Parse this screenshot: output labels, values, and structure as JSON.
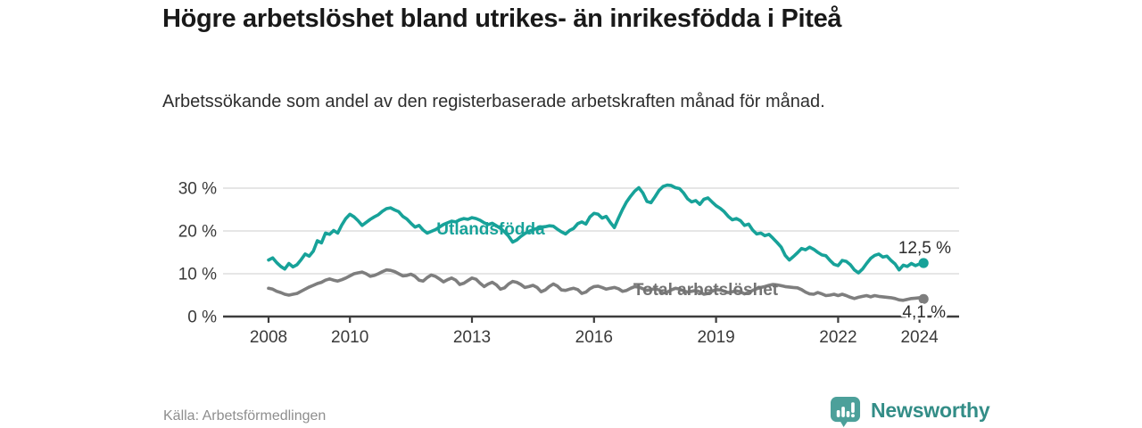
{
  "header": {
    "title": "Högre arbetslöshet bland utrikes- än inrikesfödda i Piteå",
    "subtitle": "Arbetssökande som andel av den registerbaserade arbetskraften månad för månad."
  },
  "footer": {
    "source": "Källa: Arbetsförmedlingen",
    "brand": "Newsworthy"
  },
  "colors": {
    "title": "#191919",
    "subtitle": "#2e2e2e",
    "axis": "#3d3d3d",
    "grid": "#d8d8d8",
    "tick_label": "#3a3a3a",
    "end_label": "#2b2b2b",
    "teal_series": "#17a299",
    "gray_series": "#7e7e7e",
    "gray_series_label": "#737373",
    "source_text": "#8e8e8e",
    "logo_bubble": "#4ca09a",
    "logo_word": "#338d87"
  },
  "chart_data": {
    "type": "line",
    "title": "Högre arbetslöshet bland utrikes- än inrikesfödda i Piteå",
    "subtitle": "Arbetssökande som andel av den registerbaserade arbetskraften månad för månad.",
    "unit": "%",
    "grid": "horizontal",
    "legend_position": "inline-on-line",
    "x_start": 2008.0,
    "x_step": 0.1,
    "x_end": 2024.1,
    "xlim": [
      2006.9,
      2025.0
    ],
    "ylim": [
      0,
      32
    ],
    "x_ticks": [
      2008,
      2010,
      2013,
      2016,
      2019,
      2022,
      2024
    ],
    "x_tick_labels": [
      "2008",
      "2010",
      "2013",
      "2016",
      "2019",
      "2022",
      "2024"
    ],
    "y_ticks": [
      0,
      10,
      20,
      30
    ],
    "y_tick_labels": [
      "0 %",
      "10 %",
      "20 %",
      "30 %"
    ],
    "series": [
      {
        "name": "Utlandsfödda",
        "color": "#17a299",
        "end_value": 12.5,
        "end_label": "12,5 %",
        "values": [
          13.2,
          13.7,
          12.6,
          11.7,
          11.1,
          12.4,
          11.6,
          12.1,
          13.3,
          14.6,
          14.1,
          15.3,
          17.7,
          17.2,
          19.5,
          19.2,
          20.1,
          19.5,
          21.4,
          22.9,
          23.9,
          23.3,
          22.4,
          21.3,
          22.0,
          22.7,
          23.3,
          23.8,
          24.6,
          25.2,
          25.4,
          24.9,
          24.5,
          23.4,
          22.8,
          21.8,
          20.9,
          21.3,
          20.2,
          19.5,
          19.9,
          20.3,
          20.9,
          21.5,
          21.9,
          22.3,
          22.1,
          22.6,
          22.9,
          22.7,
          23.1,
          22.9,
          22.5,
          21.9,
          21.5,
          21.8,
          21.2,
          20.6,
          19.8,
          18.8,
          17.4,
          17.9,
          18.7,
          19.4,
          19.9,
          20.3,
          20.6,
          20.9,
          21.0,
          21.2,
          21.1,
          20.4,
          19.8,
          19.3,
          20.1,
          20.6,
          21.7,
          22.1,
          21.6,
          23.3,
          24.1,
          23.9,
          23.0,
          23.4,
          22.0,
          20.8,
          23.0,
          25.0,
          26.8,
          28.1,
          29.3,
          30.1,
          28.9,
          26.9,
          26.6,
          28.0,
          29.5,
          30.4,
          30.7,
          30.6,
          30.1,
          29.9,
          28.9,
          27.5,
          26.8,
          27.1,
          26.2,
          27.4,
          27.7,
          26.8,
          25.9,
          25.3,
          24.5,
          23.4,
          22.6,
          22.9,
          22.4,
          21.3,
          21.6,
          20.2,
          19.3,
          19.5,
          18.9,
          19.2,
          18.3,
          17.3,
          16.2,
          14.3,
          13.2,
          14.0,
          14.9,
          15.9,
          15.6,
          16.2,
          15.7,
          15.0,
          14.4,
          14.2,
          13.1,
          12.2,
          11.9,
          13.1,
          12.9,
          12.1,
          10.9,
          10.2,
          11.1,
          12.4,
          13.6,
          14.3,
          14.6,
          13.9,
          14.1,
          13.1,
          12.3,
          10.9,
          12.0,
          11.7,
          12.4,
          11.9,
          12.3,
          12.5
        ]
      },
      {
        "name": "Total arbetslöshet",
        "color": "#7e7e7e",
        "end_value": 4.1,
        "end_label": "4,1 %",
        "values": [
          6.6,
          6.4,
          5.9,
          5.6,
          5.2,
          5.0,
          5.2,
          5.4,
          5.9,
          6.4,
          6.9,
          7.3,
          7.7,
          8.0,
          8.5,
          8.8,
          8.5,
          8.3,
          8.6,
          9.0,
          9.5,
          10.0,
          10.2,
          10.4,
          10.0,
          9.4,
          9.6,
          10.0,
          10.5,
          10.9,
          10.8,
          10.5,
          10.0,
          9.5,
          9.6,
          9.9,
          9.4,
          8.5,
          8.3,
          9.1,
          9.7,
          9.4,
          8.8,
          8.1,
          8.6,
          9.0,
          8.5,
          7.5,
          7.8,
          8.4,
          9.0,
          8.7,
          7.8,
          7.0,
          7.6,
          8.0,
          7.4,
          6.4,
          6.7,
          7.6,
          8.2,
          8.0,
          7.5,
          6.8,
          7.0,
          7.3,
          6.8,
          5.8,
          6.2,
          7.0,
          7.6,
          7.1,
          6.2,
          6.1,
          6.4,
          6.6,
          6.3,
          5.4,
          5.7,
          6.5,
          7.0,
          7.1,
          6.8,
          6.4,
          6.6,
          6.8,
          6.5,
          5.9,
          6.1,
          6.6,
          7.0,
          6.9,
          6.5,
          6.1,
          6.3,
          6.5,
          6.2,
          5.5,
          5.7,
          6.2,
          6.6,
          6.4,
          6.0,
          5.7,
          5.9,
          6.1,
          5.8,
          5.2,
          5.4,
          5.9,
          6.3,
          6.2,
          5.9,
          5.6,
          5.8,
          6.0,
          5.8,
          5.3,
          5.6,
          6.1,
          6.5,
          6.8,
          7.0,
          7.3,
          7.5,
          7.4,
          7.2,
          7.0,
          6.9,
          6.8,
          6.7,
          6.3,
          5.7,
          5.3,
          5.2,
          5.6,
          5.3,
          4.9,
          5.0,
          5.2,
          4.9,
          5.2,
          4.9,
          4.5,
          4.2,
          4.5,
          4.7,
          4.9,
          4.6,
          4.9,
          4.7,
          4.6,
          4.5,
          4.4,
          4.2,
          3.9,
          3.8,
          4.0,
          4.2,
          4.3,
          4.4,
          4.1
        ]
      }
    ]
  }
}
